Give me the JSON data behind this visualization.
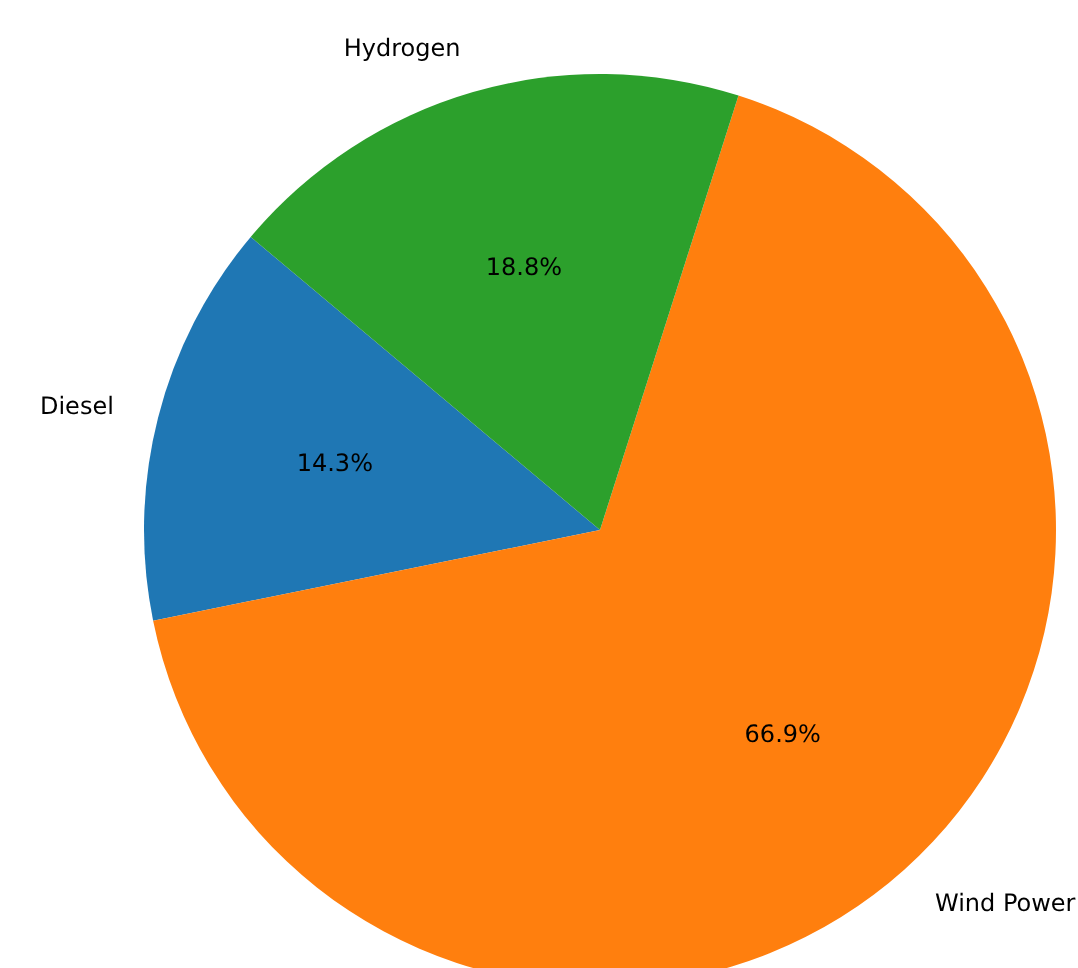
{
  "chart_data": {
    "type": "pie",
    "categories": [
      "Diesel",
      "Wind Power",
      "Hydrogen"
    ],
    "values": [
      14.3,
      66.9,
      18.8
    ],
    "colors": [
      "#1f77b4",
      "#ff7f0e",
      "#2ca02c"
    ],
    "value_labels": [
      "14.3%",
      "66.9%",
      "18.8%"
    ]
  }
}
